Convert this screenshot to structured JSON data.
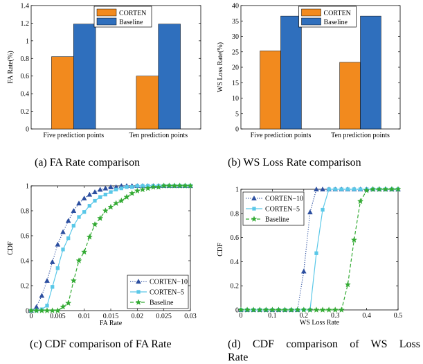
{
  "chart_data": [
    {
      "id": "a",
      "type": "bar",
      "caption": "(a) FA Rate comparison",
      "categories": [
        "Five prediction points",
        "Ten prediction points"
      ],
      "series": [
        {
          "name": "CORTEN",
          "color": "#f28a1e",
          "values": [
            0.82,
            0.6
          ]
        },
        {
          "name": "Baseline",
          "color": "#2f6fbd",
          "values": [
            1.19,
            1.19
          ]
        }
      ],
      "ylabel": "FA Rate(%)",
      "ylim": [
        0,
        1.4
      ],
      "yticks": [
        0,
        0.2,
        0.4,
        0.6,
        0.8,
        1,
        1.2,
        1.4
      ],
      "ytick_labels": [
        "0",
        "0.2",
        "0.4",
        "0.6",
        "0.8",
        "1",
        "1.2",
        "1.4"
      ],
      "legend": "top-center"
    },
    {
      "id": "b",
      "type": "bar",
      "caption": "(b) WS Loss Rate comparison",
      "categories": [
        "Five prediction points",
        "Ten prediction points"
      ],
      "series": [
        {
          "name": "CORTEN",
          "color": "#f28a1e",
          "values": [
            25.3,
            21.6
          ]
        },
        {
          "name": "Baseline",
          "color": "#2f6fbd",
          "values": [
            36.6,
            36.6
          ]
        }
      ],
      "ylabel": "WS Loss Rate(%)",
      "ylim": [
        0,
        40
      ],
      "yticks": [
        0,
        5,
        10,
        15,
        20,
        25,
        30,
        35,
        40
      ],
      "ytick_labels": [
        "0",
        "5",
        "10",
        "15",
        "20",
        "25",
        "30",
        "35",
        "40"
      ],
      "legend": "top-center"
    },
    {
      "id": "c",
      "type": "line",
      "caption": "(c) CDF comparison of FA Rate",
      "xlabel": "FA Rate",
      "ylabel": "CDF",
      "xlim": [
        0,
        0.03
      ],
      "ylim": [
        0,
        1
      ],
      "xticks": [
        0,
        0.005,
        0.01,
        0.015,
        0.02,
        0.025,
        0.03
      ],
      "xtick_labels": [
        "0",
        "0.005",
        "0.01",
        "0.015",
        "0.02",
        "0.025",
        "0.03"
      ],
      "yticks": [
        0,
        0.2,
        0.4,
        0.6,
        0.8,
        1
      ],
      "ytick_labels": [
        "0",
        "0.2",
        "0.4",
        "0.6",
        "0.8",
        "1"
      ],
      "legend": "bottom-right",
      "series": [
        {
          "name": "CORTEN−10",
          "color": "#2c4fa0",
          "marker": "triangle",
          "dash": "dotted",
          "x": [
            0,
            0.001,
            0.002,
            0.003,
            0.004,
            0.005,
            0.006,
            0.007,
            0.008,
            0.009,
            0.01,
            0.011,
            0.012,
            0.013,
            0.014,
            0.015,
            0.016,
            0.017,
            0.018,
            0.019,
            0.02,
            0.021,
            0.022,
            0.023,
            0.024,
            0.025,
            0.026,
            0.027,
            0.028,
            0.029,
            0.03
          ],
          "y": [
            0,
            0.03,
            0.12,
            0.24,
            0.39,
            0.53,
            0.63,
            0.72,
            0.8,
            0.86,
            0.9,
            0.93,
            0.95,
            0.97,
            0.98,
            0.99,
            0.99,
            1,
            1,
            1,
            1,
            1,
            1,
            1,
            1,
            1,
            1,
            1,
            1,
            1,
            1
          ]
        },
        {
          "name": "CORTEN−5",
          "color": "#5ac8e8",
          "marker": "square",
          "dash": "solid",
          "x": [
            0,
            0.001,
            0.002,
            0.003,
            0.004,
            0.005,
            0.006,
            0.007,
            0.008,
            0.009,
            0.01,
            0.011,
            0.012,
            0.013,
            0.014,
            0.015,
            0.016,
            0.017,
            0.018,
            0.019,
            0.02,
            0.021,
            0.022,
            0.023,
            0.024,
            0.025,
            0.026,
            0.027,
            0.028,
            0.029,
            0.03
          ],
          "y": [
            0,
            0,
            0.01,
            0.04,
            0.19,
            0.34,
            0.49,
            0.58,
            0.68,
            0.75,
            0.79,
            0.84,
            0.88,
            0.91,
            0.93,
            0.95,
            0.97,
            0.98,
            0.99,
            0.99,
            1,
            1,
            1,
            1,
            1,
            1,
            1,
            1,
            1,
            1,
            1
          ]
        },
        {
          "name": "Baseline",
          "color": "#33aa33",
          "marker": "star",
          "dash": "dashed",
          "x": [
            0,
            0.001,
            0.002,
            0.003,
            0.004,
            0.005,
            0.006,
            0.007,
            0.008,
            0.009,
            0.01,
            0.011,
            0.012,
            0.013,
            0.014,
            0.015,
            0.016,
            0.017,
            0.018,
            0.019,
            0.02,
            0.021,
            0.022,
            0.023,
            0.024,
            0.025,
            0.026,
            0.027,
            0.028,
            0.029,
            0.03
          ],
          "y": [
            0,
            0,
            0,
            0,
            0,
            0,
            0.03,
            0.06,
            0.24,
            0.4,
            0.47,
            0.59,
            0.69,
            0.74,
            0.8,
            0.83,
            0.86,
            0.88,
            0.91,
            0.94,
            0.96,
            0.97,
            0.98,
            0.99,
            0.99,
            1,
            1,
            1,
            1,
            1,
            1
          ]
        }
      ]
    },
    {
      "id": "d",
      "type": "line",
      "caption_lines": [
        "(d) CDF comparison of WS Loss",
        "Rate"
      ],
      "xlabel": "WS Loss Rate",
      "ylabel": "CDF",
      "xlim": [
        0,
        0.5
      ],
      "ylim": [
        0,
        1
      ],
      "xticks": [
        0,
        0.1,
        0.2,
        0.3,
        0.4,
        0.5
      ],
      "xtick_labels": [
        "0",
        "0.1",
        "0.2",
        "0.3",
        "0.4",
        "0.5"
      ],
      "yticks": [
        0,
        0.2,
        0.4,
        0.6,
        0.8,
        1
      ],
      "ytick_labels": [
        "0",
        "0.2",
        "0.4",
        "0.6",
        "0.8",
        "1"
      ],
      "legend": "top-left",
      "series": [
        {
          "name": "CORTEN−10",
          "color": "#2c4fa0",
          "marker": "triangle",
          "dash": "dotted",
          "x": [
            0,
            0.02,
            0.04,
            0.06,
            0.08,
            0.1,
            0.12,
            0.14,
            0.16,
            0.18,
            0.2,
            0.22,
            0.24,
            0.26,
            0.28,
            0.3,
            0.32,
            0.34,
            0.36,
            0.38,
            0.4,
            0.42,
            0.44,
            0.46,
            0.48,
            0.5
          ],
          "y": [
            0,
            0,
            0,
            0,
            0,
            0,
            0,
            0,
            0,
            0,
            0.32,
            0.81,
            1,
            1,
            1,
            1,
            1,
            1,
            1,
            1,
            1,
            1,
            1,
            1,
            1,
            1
          ]
        },
        {
          "name": "CORTEN−5",
          "color": "#5ac8e8",
          "marker": "square",
          "dash": "solid",
          "x": [
            0,
            0.02,
            0.04,
            0.06,
            0.08,
            0.1,
            0.12,
            0.14,
            0.16,
            0.18,
            0.2,
            0.22,
            0.24,
            0.26,
            0.28,
            0.3,
            0.32,
            0.34,
            0.36,
            0.38,
            0.4,
            0.42,
            0.44,
            0.46,
            0.48,
            0.5
          ],
          "y": [
            0,
            0,
            0,
            0,
            0,
            0,
            0,
            0,
            0,
            0,
            0,
            0,
            0.47,
            0.83,
            1,
            1,
            1,
            1,
            1,
            1,
            1,
            1,
            1,
            1,
            1,
            1
          ]
        },
        {
          "name": "Baseline",
          "color": "#33aa33",
          "marker": "star",
          "dash": "dashed",
          "x": [
            0,
            0.02,
            0.04,
            0.06,
            0.08,
            0.1,
            0.12,
            0.14,
            0.16,
            0.18,
            0.2,
            0.22,
            0.24,
            0.26,
            0.28,
            0.3,
            0.32,
            0.34,
            0.36,
            0.38,
            0.4,
            0.42,
            0.44,
            0.46,
            0.48,
            0.5
          ],
          "y": [
            0,
            0,
            0,
            0,
            0,
            0,
            0,
            0,
            0,
            0,
            0,
            0,
            0,
            0,
            0,
            0,
            0,
            0.21,
            0.58,
            0.9,
            0.99,
            1,
            1,
            1,
            1,
            1
          ]
        }
      ]
    }
  ]
}
